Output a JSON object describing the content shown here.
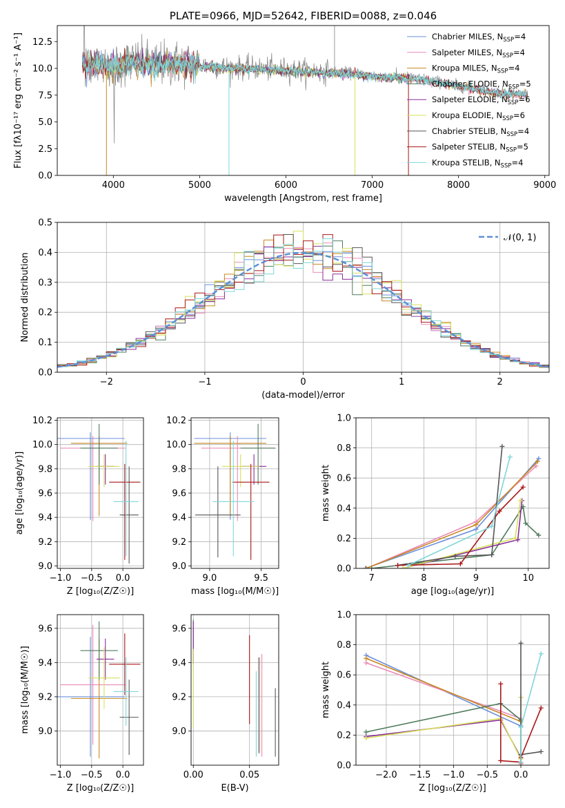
{
  "colors": {
    "Chabrier MILES": "#6a8fdb",
    "Salpeter MILES": "#e98ab8",
    "Kroupa MILES": "#c8871f",
    "Chabrier ELODIE": "#4d7a5c",
    "Salpeter ELODIE": "#8a2c9b",
    "Kroupa ELODIE": "#d6e05a",
    "Chabrier STELIB": "#555555",
    "Salpeter STELIB": "#a81515",
    "Kroupa STELIB": "#7fd6d8",
    "spectrum": "#8c8c8c",
    "model_blue": "#5b8fd6",
    "model_orange": "#e8802a",
    "gaussian": "#5b8fd6",
    "grid": "#b0b0b0"
  },
  "chart_data": [
    {
      "id": "spectrum",
      "type": "line",
      "title": "PLATE=0966, MJD=52642, FIBERID=0088, z=0.046",
      "xlabel": "wavelength [Angstrom, rest frame]",
      "ylabel": "Flux [fλ10⁻¹⁷ erg cm⁻² s⁻¹ A⁻¹]",
      "xlim": [
        3350,
        9050
      ],
      "ylim": [
        0,
        14
      ],
      "xticks": [
        "4000",
        "5000",
        "6000",
        "7000",
        "8000",
        "9000"
      ],
      "yticks": [
        "0.0",
        "2.5",
        "5.0",
        "7.5",
        "10.0",
        "12.5"
      ],
      "grid": false,
      "legend_position": "upper-right",
      "legend": [
        {
          "name": "Chabrier MILES",
          "nssp": "4"
        },
        {
          "name": "Salpeter MILES",
          "nssp": "4"
        },
        {
          "name": "Kroupa MILES",
          "nssp": "4"
        },
        {
          "name": "Chabrier ELODIE",
          "nssp": "5"
        },
        {
          "name": "Salpeter ELODIE",
          "nssp": "6"
        },
        {
          "name": "Kroupa ELODIE",
          "nssp": "6"
        },
        {
          "name": "Chabrier STELIB",
          "nssp": "4"
        },
        {
          "name": "Salpeter STELIB",
          "nssp": "5"
        },
        {
          "name": "Kroupa STELIB",
          "nssp": "4"
        }
      ],
      "observed_trend": {
        "x": [
          3640,
          3800,
          4000,
          4200,
          4500,
          4800,
          5000,
          5300,
          5600,
          6000,
          6400,
          6700,
          7000,
          7300,
          7600,
          7800,
          8000,
          8200,
          8500,
          8800
        ],
        "y": [
          10.5,
          10.6,
          10.2,
          10.6,
          10.4,
          10.5,
          10.3,
          10.1,
          10.0,
          9.9,
          9.7,
          9.6,
          9.3,
          9.2,
          9.0,
          8.7,
          8.4,
          8.1,
          7.7,
          7.6
        ]
      },
      "model_range": [
        3640,
        7420
      ],
      "long_model_range": [
        3640,
        8800
      ]
    },
    {
      "id": "residuals",
      "type": "histogram",
      "xlabel": "(data-model)/error",
      "ylabel": "Normed distribution",
      "xlim": [
        -2.5,
        2.5
      ],
      "ylim": [
        0,
        0.5
      ],
      "xticks": [
        "−2",
        "−1",
        "0",
        "1",
        "2"
      ],
      "yticks": [
        "0.0",
        "0.1",
        "0.2",
        "0.3",
        "0.4",
        "0.5"
      ],
      "grid": true,
      "legend_position": "upper-right",
      "legend": [
        "𝒩(0, 1)"
      ],
      "bin_width": 0.1
    },
    {
      "id": "z-age",
      "type": "errorbar",
      "xlabel": "Z [log₁₀(Z/Z☉)]",
      "ylabel": "age [log₁₀(age/yr)]",
      "xlim": [
        -1.05,
        0.33
      ],
      "ylim": [
        8.98,
        10.22
      ],
      "xticks": [
        "−1.0",
        "−0.5",
        "0.0"
      ],
      "yticks": [
        "9.0",
        "9.2",
        "9.4",
        "9.6",
        "9.8",
        "10.0",
        "10.2"
      ],
      "points": [
        {
          "x": -0.52,
          "xerr": 0.55,
          "y": 10.05,
          "yerr": [
            0.67,
            0.05
          ],
          "c": "Chabrier MILES"
        },
        {
          "x": -0.48,
          "xerr": 0.52,
          "y": 9.97,
          "yerr": [
            0.6,
            0.1
          ],
          "c": "Salpeter MILES"
        },
        {
          "x": -0.38,
          "xerr": 0.45,
          "y": 10.01,
          "yerr": [
            0.6,
            0.06
          ],
          "c": "Kroupa MILES"
        },
        {
          "x": -0.38,
          "xerr": 0.3,
          "y": 9.97,
          "yerr": [
            0.3,
            0.2
          ],
          "c": "Chabrier ELODIE"
        },
        {
          "x": -0.28,
          "xerr": 0.14,
          "y": 9.82,
          "yerr": [
            0.15,
            0.1
          ],
          "c": "Salpeter ELODIE"
        },
        {
          "x": -0.3,
          "xerr": 0.25,
          "y": 9.82,
          "yerr": [
            0.17,
            0.1
          ],
          "c": "Kroupa ELODIE"
        },
        {
          "x": 0.1,
          "xerr": 0.15,
          "y": 9.42,
          "yerr": [
            0.4,
            0.4
          ],
          "c": "Chabrier STELIB"
        },
        {
          "x": 0.03,
          "xerr": 0.25,
          "y": 9.69,
          "yerr": [
            0.64,
            0.15
          ],
          "c": "Salpeter STELIB"
        },
        {
          "x": 0.05,
          "xerr": 0.2,
          "y": 9.53,
          "yerr": [
            0.45,
            0.5
          ],
          "c": "Kroupa STELIB"
        }
      ]
    },
    {
      "id": "mass-age",
      "type": "errorbar",
      "xlabel": "mass [log₁₀(M/M☉)]",
      "xlim": [
        8.82,
        9.67
      ],
      "ylim": [
        8.98,
        10.22
      ],
      "xticks": [
        "9.0",
        "9.5"
      ],
      "yticks": [
        "9.0",
        "9.2",
        "9.4",
        "9.6",
        "9.8",
        "10.0",
        "10.2"
      ],
      "points": [
        {
          "x": 9.2,
          "xerr": 0.35,
          "y": 10.05,
          "yerr": [
            0.67,
            0.05
          ],
          "c": "Chabrier MILES"
        },
        {
          "x": 9.27,
          "xerr": 0.35,
          "y": 9.97,
          "yerr": [
            0.6,
            0.1
          ],
          "c": "Salpeter MILES"
        },
        {
          "x": 9.2,
          "xerr": 0.35,
          "y": 10.01,
          "yerr": [
            0.6,
            0.06
          ],
          "c": "Kroupa MILES"
        },
        {
          "x": 9.47,
          "xerr": 0.17,
          "y": 9.97,
          "yerr": [
            0.3,
            0.2
          ],
          "c": "Chabrier ELODIE"
        },
        {
          "x": 9.43,
          "xerr": 0.12,
          "y": 9.82,
          "yerr": [
            0.15,
            0.1
          ],
          "c": "Salpeter ELODIE"
        },
        {
          "x": 9.3,
          "xerr": 0.18,
          "y": 9.82,
          "yerr": [
            0.17,
            0.1
          ],
          "c": "Kroupa ELODIE"
        },
        {
          "x": 9.08,
          "xerr": 0.22,
          "y": 9.42,
          "yerr": [
            0.35,
            0.4
          ],
          "c": "Chabrier STELIB"
        },
        {
          "x": 9.4,
          "xerr": 0.18,
          "y": 9.69,
          "yerr": [
            0.64,
            0.15
          ],
          "c": "Salpeter STELIB"
        },
        {
          "x": 9.23,
          "xerr": 0.2,
          "y": 9.53,
          "yerr": [
            0.45,
            0.5
          ],
          "c": "Kroupa STELIB"
        }
      ]
    },
    {
      "id": "age-weight",
      "type": "line",
      "xlabel": "age [log₁₀(age/yr)]",
      "ylabel": "mass weight",
      "xlim": [
        6.7,
        10.4
      ],
      "ylim": [
        0,
        1
      ],
      "xticks": [
        "7",
        "8",
        "9",
        "10"
      ],
      "yticks": [
        "0.0",
        "0.2",
        "0.4",
        "0.6",
        "0.8",
        "1.0"
      ],
      "series": [
        {
          "c": "Chabrier MILES",
          "x": [
            6.88,
            9.0,
            10.2
          ],
          "y": [
            0.0,
            0.26,
            0.73
          ]
        },
        {
          "c": "Salpeter MILES",
          "x": [
            6.9,
            9.0,
            10.15
          ],
          "y": [
            0.0,
            0.31,
            0.68
          ]
        },
        {
          "c": "Kroupa MILES",
          "x": [
            6.9,
            9.0,
            10.18
          ],
          "y": [
            0.0,
            0.29,
            0.71
          ]
        },
        {
          "c": "Chabrier ELODIE",
          "x": [
            7.0,
            9.3,
            9.9,
            9.95,
            10.2
          ],
          "y": [
            0.0,
            0.09,
            0.41,
            0.3,
            0.22
          ]
        },
        {
          "c": "Salpeter ELODIE",
          "x": [
            7.6,
            9.8,
            9.88
          ],
          "y": [
            0.0,
            0.19,
            0.45
          ]
        },
        {
          "c": "Kroupa ELODIE",
          "x": [
            7.6,
            9.75,
            9.85
          ],
          "y": [
            0.0,
            0.2,
            0.45
          ]
        },
        {
          "c": "Chabrier STELIB",
          "x": [
            7.5,
            8.6,
            9.3,
            9.5
          ],
          "y": [
            0.02,
            0.08,
            0.09,
            0.81
          ]
        },
        {
          "c": "Salpeter STELIB",
          "x": [
            7.5,
            8.7,
            9.45,
            9.9
          ],
          "y": [
            0.02,
            0.03,
            0.38,
            0.54
          ]
        },
        {
          "c": "Kroupa STELIB",
          "x": [
            7.7,
            9.3,
            9.65
          ],
          "y": [
            0.02,
            0.28,
            0.74
          ]
        }
      ]
    },
    {
      "id": "z-mass",
      "type": "errorbar",
      "xlabel": "Z [log₁₀(Z/Z☉)]",
      "ylabel": "mass [log₁₀(M/M☉)]",
      "xlim": [
        -1.05,
        0.33
      ],
      "ylim": [
        8.8,
        9.68
      ],
      "xticks": [
        "−1.0",
        "−0.5",
        "0.0"
      ],
      "yticks": [
        "9.0",
        "9.2",
        "9.4",
        "9.6"
      ],
      "points": [
        {
          "x": -0.52,
          "xerr": 0.55,
          "y": 9.2,
          "yerr": 0.35,
          "c": "Chabrier MILES"
        },
        {
          "x": -0.48,
          "xerr": 0.52,
          "y": 9.27,
          "yerr": 0.35,
          "c": "Salpeter MILES"
        },
        {
          "x": -0.38,
          "xerr": 0.45,
          "y": 9.19,
          "yerr": 0.35,
          "c": "Kroupa MILES"
        },
        {
          "x": -0.38,
          "xerr": 0.3,
          "y": 9.47,
          "yerr": 0.17,
          "c": "Chabrier ELODIE"
        },
        {
          "x": -0.28,
          "xerr": 0.14,
          "y": 9.42,
          "yerr": 0.12,
          "c": "Salpeter ELODIE"
        },
        {
          "x": -0.3,
          "xerr": 0.25,
          "y": 9.31,
          "yerr": 0.18,
          "c": "Kroupa ELODIE"
        },
        {
          "x": 0.1,
          "xerr": 0.15,
          "y": 9.08,
          "yerr": 0.22,
          "c": "Chabrier STELIB"
        },
        {
          "x": 0.03,
          "xerr": 0.25,
          "y": 9.39,
          "yerr": 0.18,
          "c": "Salpeter STELIB"
        },
        {
          "x": 0.05,
          "xerr": 0.2,
          "y": 9.23,
          "yerr": 0.2,
          "c": "Kroupa STELIB"
        }
      ]
    },
    {
      "id": "ebv-mass",
      "type": "errorbar",
      "xlabel": "E(B-V)",
      "xlim": [
        -0.002,
        0.076
      ],
      "ylim": [
        8.8,
        9.68
      ],
      "xticks": [
        "0.00",
        "0.05"
      ],
      "yticks": [
        "9.0",
        "9.2",
        "9.4",
        "9.6"
      ],
      "points": [
        {
          "x": 0.0,
          "y": 9.52,
          "yerr": 0.13,
          "c": "Chabrier ELODIE"
        },
        {
          "x": 0.0,
          "y": 9.52,
          "yerr": 0.12,
          "c": "Salpeter ELODIE"
        },
        {
          "x": 0.0,
          "y": 9.25,
          "yerr": 0.23,
          "c": "Kroupa ELODIE"
        },
        {
          "x": 0.05,
          "y": 9.3,
          "yerr": 0.26,
          "c": "Salpeter STELIB"
        },
        {
          "x": 0.056,
          "y": 9.1,
          "yerr": 0.25,
          "c": "Kroupa STELIB"
        },
        {
          "x": 0.058,
          "y": 9.15,
          "yerr": 0.28,
          "c": "Chabrier MILES"
        },
        {
          "x": 0.059,
          "y": 9.15,
          "yerr": 0.28,
          "c": "Kroupa MILES"
        },
        {
          "x": 0.061,
          "y": 9.15,
          "yerr": 0.3,
          "c": "Salpeter MILES"
        },
        {
          "x": 0.073,
          "y": 9.05,
          "yerr": 0.2,
          "c": "Chabrier STELIB"
        }
      ]
    },
    {
      "id": "z-weight",
      "type": "line",
      "xlabel": "Z [log₁₀(Z/Z☉)]",
      "ylabel": "mass weight",
      "xlim": [
        -2.45,
        0.42
      ],
      "ylim": [
        0,
        1
      ],
      "xticks": [
        "−2.0",
        "−1.5",
        "−1.0",
        "−0.5",
        "0.0"
      ],
      "yticks": [
        "0.0",
        "0.2",
        "0.4",
        "0.6",
        "0.8",
        "1.0"
      ],
      "series": [
        {
          "c": "Chabrier MILES",
          "x": [
            -2.3,
            0.0,
            0.0
          ],
          "y": [
            0.73,
            0.26,
            0.01
          ]
        },
        {
          "c": "Salpeter MILES",
          "x": [
            -2.3,
            0.0,
            0.0
          ],
          "y": [
            0.68,
            0.31,
            0.01
          ]
        },
        {
          "c": "Kroupa MILES",
          "x": [
            -2.3,
            0.0,
            0.0
          ],
          "y": [
            0.71,
            0.29,
            0.0
          ]
        },
        {
          "c": "Chabrier ELODIE",
          "x": [
            -2.3,
            -0.3,
            0.0,
            0.0
          ],
          "y": [
            0.22,
            0.41,
            0.3,
            0.07
          ]
        },
        {
          "c": "Salpeter ELODIE",
          "x": [
            -2.3,
            -0.3,
            0.0,
            0.0
          ],
          "y": [
            0.19,
            0.3,
            0.05,
            0.45
          ]
        },
        {
          "c": "Kroupa ELODIE",
          "x": [
            -2.3,
            -0.3,
            0.0,
            0.0
          ],
          "y": [
            0.18,
            0.31,
            0.04,
            0.45
          ]
        },
        {
          "c": "Chabrier STELIB",
          "x": [
            0.3,
            0.0,
            0.0,
            0.0
          ],
          "y": [
            0.09,
            0.07,
            0.02,
            0.81
          ]
        },
        {
          "c": "Salpeter STELIB",
          "x": [
            -0.3,
            -0.3,
            0.0,
            0.0,
            0.3
          ],
          "y": [
            0.54,
            0.03,
            0.02,
            0.05,
            0.38
          ]
        },
        {
          "c": "Kroupa STELIB",
          "x": [
            0.0,
            0.0,
            0.3
          ],
          "y": [
            0.02,
            0.25,
            0.74
          ]
        }
      ]
    }
  ]
}
